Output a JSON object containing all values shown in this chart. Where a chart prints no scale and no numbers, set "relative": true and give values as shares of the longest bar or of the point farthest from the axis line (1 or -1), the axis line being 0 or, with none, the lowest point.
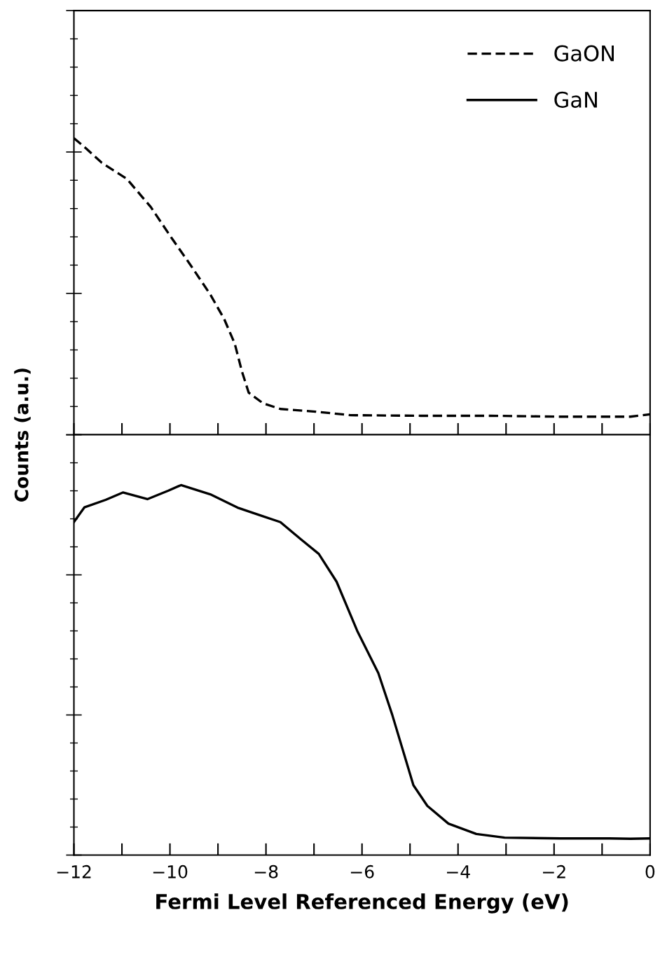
{
  "chart_data": [
    {
      "type": "line",
      "relative": true,
      "ylabel": "Counts (a.u.)",
      "xlim": [
        -12,
        0
      ],
      "xticks": [
        -12,
        -10,
        -8,
        -6,
        -4,
        -2,
        0
      ],
      "tick_labels": false,
      "legend": "top right",
      "line_style": "dashed",
      "series": [
        {
          "name": "GaON",
          "color": "#000000",
          "x": [
            -12,
            -11.78,
            -11.42,
            -10.9,
            -10.4,
            -9.96,
            -9.6,
            -9.16,
            -8.87,
            -8.65,
            -8.5,
            -8.36,
            -8.06,
            -7.7,
            -6.97,
            -6.24,
            -4.78,
            -3.33,
            -1.87,
            -0.41,
            0
          ],
          "values": [
            1.0,
            0.97,
            0.917,
            0.863,
            0.768,
            0.662,
            0.579,
            0.473,
            0.39,
            0.307,
            0.213,
            0.142,
            0.106,
            0.087,
            0.078,
            0.066,
            0.064,
            0.064,
            0.061,
            0.061,
            0.069
          ]
        }
      ]
    },
    {
      "type": "line",
      "relative": true,
      "xlabel": "Fermi Level Referenced Energy (eV)",
      "xlim": [
        -12,
        0
      ],
      "xticks": [
        -12,
        -10,
        -8,
        -6,
        -4,
        -2,
        0
      ],
      "tick_labels": "x",
      "line_style": "solid",
      "series": [
        {
          "name": "GaN",
          "color": "#000000",
          "x": [
            -12,
            -11.78,
            -11.34,
            -10.98,
            -10.47,
            -10.03,
            -9.77,
            -9.16,
            -8.57,
            -8.14,
            -7.7,
            -7.26,
            -6.9,
            -6.53,
            -6.1,
            -5.66,
            -5.37,
            -5.15,
            -4.93,
            -4.64,
            -4.2,
            -3.62,
            -3.03,
            -1.87,
            -0.85,
            -0.41,
            0
          ],
          "values": [
            0.9,
            0.94,
            0.96,
            0.98,
            0.962,
            0.985,
            1.0,
            0.975,
            0.938,
            0.919,
            0.9,
            0.852,
            0.814,
            0.739,
            0.606,
            0.492,
            0.379,
            0.284,
            0.189,
            0.133,
            0.085,
            0.057,
            0.047,
            0.045,
            0.045,
            0.044,
            0.045
          ]
        }
      ]
    }
  ]
}
